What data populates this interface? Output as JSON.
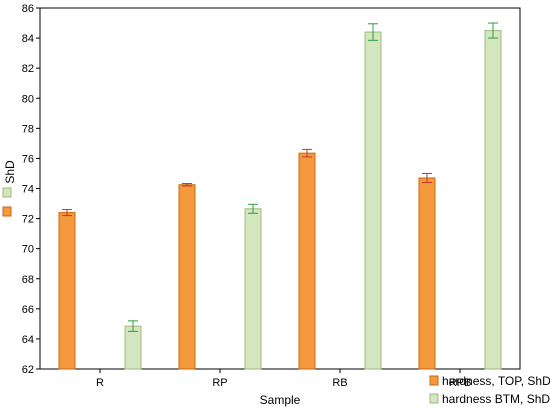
{
  "chart_data": {
    "type": "bar",
    "title": "",
    "xlabel": "Sample",
    "ylabel": "ShD",
    "categories": [
      "R",
      "RP",
      "RB",
      "RPB"
    ],
    "ylim": [
      62,
      86
    ],
    "yticks": [
      62,
      64,
      66,
      68,
      70,
      72,
      74,
      76,
      78,
      80,
      82,
      84,
      86
    ],
    "grid": false,
    "error_bars": true,
    "legend_position": "bottom-right",
    "series": [
      {
        "name": "hardness, TOP, ShD",
        "color": "#f59a3c",
        "stroke": "#c96a12",
        "error_color": "#c0392b",
        "values": [
          72.4,
          74.25,
          76.35,
          74.7
        ],
        "errors": [
          0.2,
          0.08,
          0.25,
          0.3
        ]
      },
      {
        "name": "hardness BTM, ShD",
        "color": "#d3e6bd",
        "stroke": "#9fba80",
        "error_color": "#2e9e3e",
        "values": [
          64.85,
          72.65,
          84.4,
          84.5
        ],
        "errors": [
          0.35,
          0.3,
          0.55,
          0.5
        ]
      }
    ]
  }
}
